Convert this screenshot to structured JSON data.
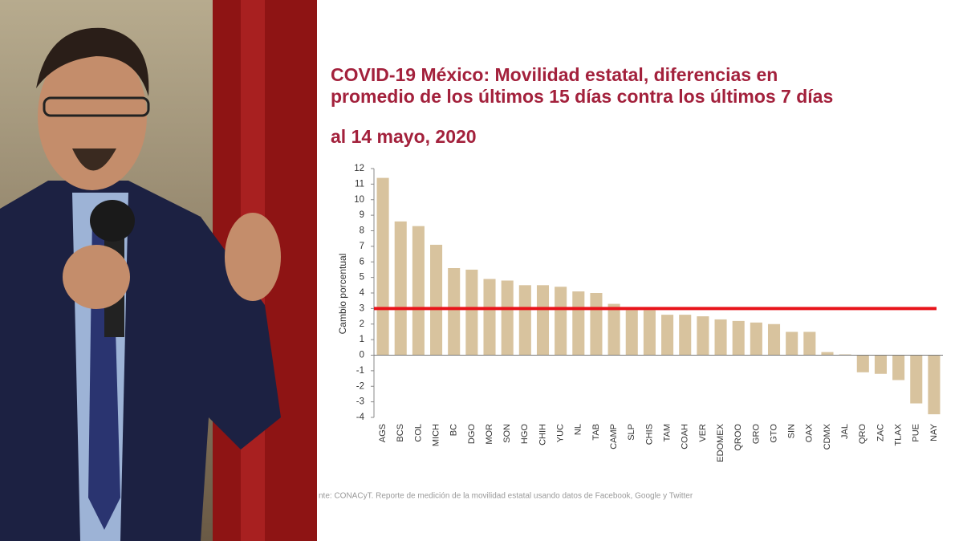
{
  "chart_data": {
    "type": "bar",
    "title": "COVID-19 México: Movilidad estatal, diferencias en promedio de los últimos 15 días contra los últimos 7 días",
    "subtitle": "al 14 mayo, 2020",
    "y_label": "Cambio porcentual",
    "source": "nte: CONACyT. Reporte de medición de la movilidad estatal usando datos de Facebook, Google y Twitter",
    "categories": [
      "AGS",
      "BCS",
      "COL",
      "MICH",
      "BC",
      "DGO",
      "MOR",
      "SON",
      "HGO",
      "CHIH",
      "YUC",
      "NL",
      "TAB",
      "CAMP",
      "SLP",
      "CHIS",
      "TAM",
      "COAH",
      "VER",
      "EDOMEX",
      "QROO",
      "GRO",
      "GTO",
      "SIN",
      "OAX",
      "CDMX",
      "JAL",
      "QRO",
      "ZAC",
      "TLAX",
      "PUE",
      "NAY"
    ],
    "values": [
      11.4,
      8.6,
      8.3,
      7.1,
      5.6,
      5.5,
      4.9,
      4.8,
      4.5,
      4.5,
      4.4,
      4.1,
      4.0,
      3.3,
      2.9,
      2.9,
      2.6,
      2.6,
      2.5,
      2.3,
      2.2,
      2.1,
      2.0,
      1.5,
      1.5,
      0.2,
      0.05,
      -1.1,
      -1.2,
      -1.6,
      -3.1,
      -3.8
    ],
    "color": "#d8c39e",
    "reference_line": 3,
    "reference_color": "#e8141b",
    "ylim": [
      -4,
      12
    ],
    "yticks": [
      -4,
      -3,
      -2,
      -1,
      0,
      1,
      2,
      3,
      4,
      5,
      6,
      7,
      8,
      9,
      10,
      11,
      12
    ]
  }
}
